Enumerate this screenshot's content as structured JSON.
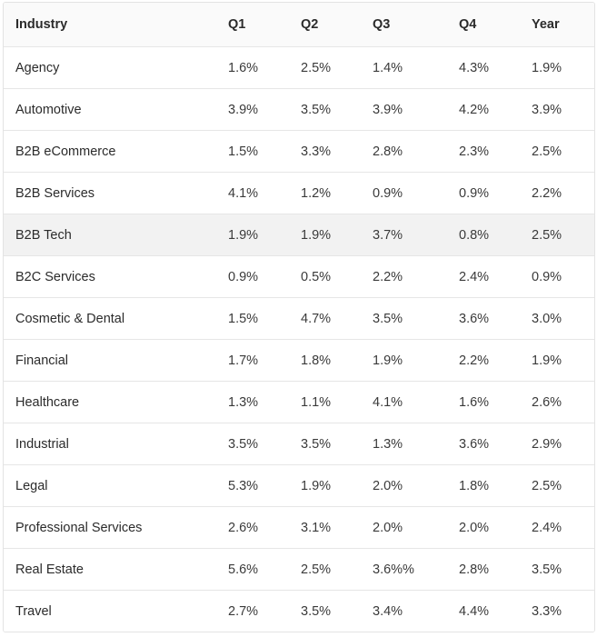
{
  "table": {
    "headers": [
      "Industry",
      "Q1",
      "Q2",
      "Q3",
      "Q4",
      "Year"
    ],
    "rows": [
      [
        "Agency",
        "1.6%",
        "2.5%",
        "1.4%",
        "4.3%",
        "1.9%"
      ],
      [
        "Automotive",
        "3.9%",
        "3.5%",
        "3.9%",
        "4.2%",
        "3.9%"
      ],
      [
        "B2B eCommerce",
        "1.5%",
        "3.3%",
        "2.8%",
        "2.3%",
        "2.5%"
      ],
      [
        "B2B Services",
        "4.1%",
        "1.2%",
        "0.9%",
        "0.9%",
        "2.2%"
      ],
      [
        "B2B Tech",
        "1.9%",
        "1.9%",
        "3.7%",
        "0.8%",
        "2.5%"
      ],
      [
        "B2C Services",
        "0.9%",
        "0.5%",
        "2.2%",
        "2.4%",
        "0.9%"
      ],
      [
        "Cosmetic & Dental",
        "1.5%",
        "4.7%",
        "3.5%",
        "3.6%",
        "3.0%"
      ],
      [
        "Financial",
        "1.7%",
        "1.8%",
        "1.9%",
        "2.2%",
        "1.9%"
      ],
      [
        "Healthcare",
        "1.3%",
        "1.1%",
        "4.1%",
        "1.6%",
        "2.6%"
      ],
      [
        "Industrial",
        "3.5%",
        "3.5%",
        "1.3%",
        "3.6%",
        "2.9%"
      ],
      [
        "Legal",
        "5.3%",
        "1.9%",
        "2.0%",
        "1.8%",
        "2.5%"
      ],
      [
        "Professional Services",
        "2.6%",
        "3.1%",
        "2.0%",
        "2.0%",
        "2.4%"
      ],
      [
        "Real Estate",
        "5.6%",
        "2.5%",
        "3.6%%",
        "2.8%",
        "3.5%"
      ],
      [
        "Travel",
        "2.7%",
        "3.5%",
        "3.4%",
        "4.4%",
        "3.3%"
      ]
    ],
    "highlighted_row": 4
  }
}
